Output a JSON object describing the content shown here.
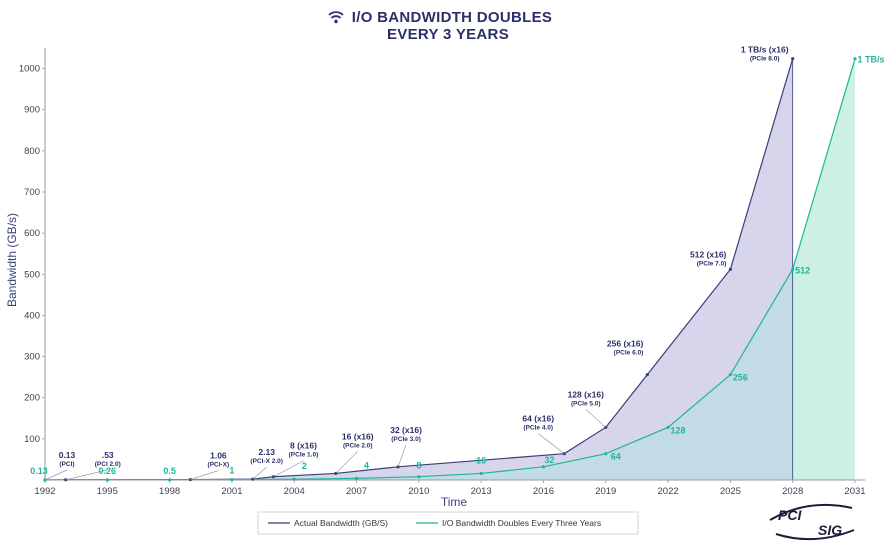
{
  "chart_data": {
    "type": "area",
    "title_lines": [
      "I/O BANDWIDTH DOUBLES",
      "EVERY 3 YEARS"
    ],
    "title_icon": "wifi-icon",
    "xlabel": "Time",
    "ylabel": "Bandwidth (GB/s)",
    "x_ticks": [
      "1992",
      "1995",
      "1998",
      "2001",
      "2004",
      "2007",
      "2010",
      "2013",
      "2016",
      "2019",
      "2022",
      "2025",
      "2028",
      "2031"
    ],
    "x_range": [
      1992,
      2031
    ],
    "y_ticks": [
      "1000",
      "900",
      "800",
      "700",
      "600",
      "500",
      "400",
      "300",
      "200",
      "100"
    ],
    "y_range": [
      0,
      1050
    ],
    "grid": false,
    "colors": {
      "actual_line": "#3b3f78",
      "actual_fill": "#d4d3ea",
      "doubling_line": "#1fb59a",
      "doubling_fill": "#c6eee0",
      "overlap_fill": "#c2d8e4",
      "axis": "#9a9a9a",
      "title": "#2b3168"
    },
    "series": [
      {
        "name": "Actual Bandwidth (GB/S)",
        "points": [
          {
            "x": 1992,
            "y": 0.13
          },
          {
            "x": 1993,
            "y": 0.53
          },
          {
            "x": 1999,
            "y": 1.06
          },
          {
            "x": 2002,
            "y": 2.13
          },
          {
            "x": 2003,
            "y": 8
          },
          {
            "x": 2006,
            "y": 16
          },
          {
            "x": 2009,
            "y": 32
          },
          {
            "x": 2017,
            "y": 64
          },
          {
            "x": 2019,
            "y": 128
          },
          {
            "x": 2021,
            "y": 256
          },
          {
            "x": 2025,
            "y": 512
          },
          {
            "x": 2028,
            "y": 1024
          }
        ]
      },
      {
        "name": "I/O Bandwidth Doubles Every Three Years",
        "points": [
          {
            "x": 1992,
            "y": 0.13
          },
          {
            "x": 1995,
            "y": 0.26
          },
          {
            "x": 1998,
            "y": 0.5
          },
          {
            "x": 2001,
            "y": 1
          },
          {
            "x": 2004,
            "y": 2
          },
          {
            "x": 2007,
            "y": 4
          },
          {
            "x": 2010,
            "y": 8
          },
          {
            "x": 2013,
            "y": 16
          },
          {
            "x": 2016,
            "y": 32
          },
          {
            "x": 2019,
            "y": 64
          },
          {
            "x": 2022,
            "y": 128
          },
          {
            "x": 2025,
            "y": 256
          },
          {
            "x": 2028,
            "y": 512
          },
          {
            "x": 2031,
            "y": 1024
          }
        ]
      }
    ],
    "actual_annotations": [
      {
        "x": 1992,
        "y": 0.13,
        "label": "0.13",
        "sub": "(PCI)"
      },
      {
        "x": 1993,
        "y": 0.53,
        "label": ".53",
        "sub": "(PCI 2.0)"
      },
      {
        "x": 1999,
        "y": 1.06,
        "label": "1.06",
        "sub": "(PCI-X)"
      },
      {
        "x": 2002,
        "y": 2.13,
        "label": "2.13",
        "sub": "(PCI-X 2.0)"
      },
      {
        "x": 2003,
        "y": 8,
        "label": "8 (x16)",
        "sub": "(PCIe 1.0)"
      },
      {
        "x": 2006,
        "y": 16,
        "label": "16 (x16)",
        "sub": "(PCIe 2.0)"
      },
      {
        "x": 2009,
        "y": 32,
        "label": "32 (x16)",
        "sub": "(PCIe 3.0)"
      },
      {
        "x": 2017,
        "y": 64,
        "label": "64 (x16)",
        "sub": "(PCIe 4.0)"
      },
      {
        "x": 2019,
        "y": 128,
        "label": "128 (x16)",
        "sub": "(PCIe 5.0)"
      },
      {
        "x": 2021,
        "y": 256,
        "label": "256 (x16)",
        "sub": "(PCIe 6.0)"
      },
      {
        "x": 2025,
        "y": 512,
        "label": "512 (x16)",
        "sub": "(PCIe 7.0)"
      },
      {
        "x": 2028,
        "y": 1024,
        "label": "1 TB/s (x16)",
        "sub": "(PCIe 8.0)"
      }
    ],
    "doubling_annotations": [
      {
        "x": 1992,
        "y": 0.13,
        "label": "0.13"
      },
      {
        "x": 1995,
        "y": 0.26,
        "label": "0.26"
      },
      {
        "x": 1998,
        "y": 0.5,
        "label": "0.5"
      },
      {
        "x": 2001,
        "y": 1,
        "label": "1"
      },
      {
        "x": 2004,
        "y": 2,
        "label": "2"
      },
      {
        "x": 2007,
        "y": 4,
        "label": "4"
      },
      {
        "x": 2010,
        "y": 8,
        "label": "8"
      },
      {
        "x": 2013,
        "y": 16,
        "label": "16"
      },
      {
        "x": 2016,
        "y": 32,
        "label": "32"
      },
      {
        "x": 2019,
        "y": 64,
        "label": "64"
      },
      {
        "x": 2022,
        "y": 128,
        "label": "128"
      },
      {
        "x": 2025,
        "y": 256,
        "label": "256"
      },
      {
        "x": 2028,
        "y": 512,
        "label": "512"
      },
      {
        "x": 2031,
        "y": 1024,
        "label": "1 TB/s"
      }
    ],
    "legend": {
      "placement": "bottom-center",
      "entries": [
        "Actual Bandwidth (GB/S)",
        "I/O Bandwidth Doubles Every Three Years"
      ]
    },
    "logo": {
      "line1": "PCI",
      "line2": "SIG"
    }
  }
}
